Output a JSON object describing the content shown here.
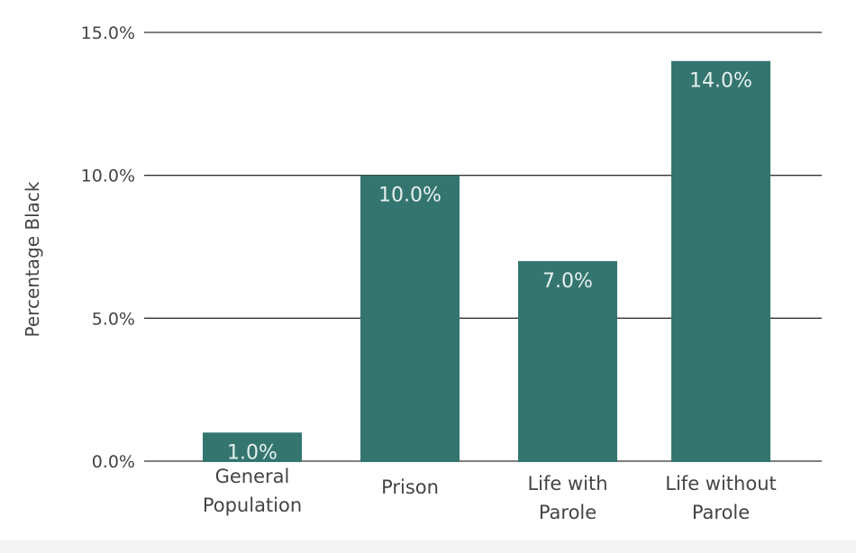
{
  "chart_data": {
    "type": "bar",
    "title": "",
    "xlabel": "",
    "ylabel": "Percentage Black",
    "categories": [
      [
        "General",
        "Population"
      ],
      [
        "Prison"
      ],
      [
        "Life with",
        "Parole"
      ],
      [
        "Life without",
        "Parole"
      ]
    ],
    "values": [
      1.0,
      10.0,
      7.0,
      14.0
    ],
    "value_labels": [
      "1.0%",
      "10.0%",
      "7.0%",
      "14.0%"
    ],
    "ylim": [
      0,
      15
    ],
    "yticks": [
      0,
      5,
      10,
      15
    ],
    "ytick_labels": [
      "0.0%",
      "5.0%",
      "10.0%",
      "15.0%"
    ],
    "grid": true,
    "bar_color": "#34756f",
    "grid_color": "#333333",
    "text_color": "#444444",
    "label_color": "#e6f0ee"
  }
}
